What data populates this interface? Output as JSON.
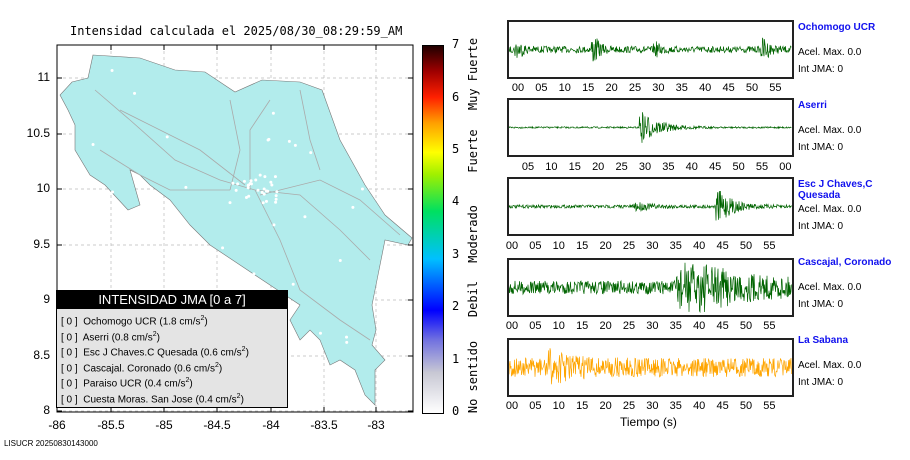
{
  "map": {
    "title": "Intensidad calculada el 2025/08/30_08:29:59_AM",
    "x_ticks": [
      "-86",
      "-85.5",
      "-85",
      "-84.5",
      "-84",
      "-83.5",
      "-83"
    ],
    "y_ticks": [
      "11",
      "10.5",
      "10",
      "9.5",
      "9",
      "8.5",
      "8"
    ],
    "footer": "LISUCR 20250830143000",
    "land_color": "#b2ecec"
  },
  "colorbar": {
    "ticks": [
      "0",
      "1",
      "2",
      "3",
      "4",
      "5",
      "6",
      "7"
    ],
    "labels": [
      "No sentido",
      "Debil",
      "Moderado",
      "Fuerte",
      "Muy Fuerte"
    ]
  },
  "legend": {
    "title": "INTENSIDAD JMA [0 a 7]",
    "rows": [
      {
        "int": "[ 0 ]",
        "name": "Ochomogo UCR (1.8 cm/s",
        "sup": "2",
        ")": ")"
      },
      {
        "int": "[ 0 ]",
        "name": "Aserri (0.8 cm/s",
        "sup": "2"
      },
      {
        "int": "[ 0 ]",
        "name": "Esc J Chaves.C Quesada (0.6 cm/s",
        "sup": "2"
      },
      {
        "int": "[ 0 ]",
        "name": "Cascajal. Coronado (0.6 cm/s",
        "sup": "2"
      },
      {
        "int": "[ 0 ]",
        "name": "Paraiso UCR (0.4 cm/s",
        "sup": "2"
      },
      {
        "int": "[ 0 ]",
        "name": "Cuesta Moras. San Jose (0.4 cm/s",
        "sup": "2"
      }
    ]
  },
  "chart_data": {
    "type": "line",
    "xlabel": "Tiempo (s)",
    "stations": [
      {
        "name": "Ochomogo UCR",
        "acel": "Acel. Max. 0.0",
        "int": "Int JMA: 0",
        "color": "#006400",
        "ticks": [
          "00",
          "05",
          "10",
          "15",
          "20",
          "25",
          "30",
          "35",
          "40",
          "45",
          "50",
          "55"
        ]
      },
      {
        "name": "Aserri",
        "acel": "Acel. Max. 0.0",
        "int": "Int JMA: 0",
        "color": "#006400",
        "ticks": [
          "05",
          "10",
          "15",
          "20",
          "25",
          "30",
          "35",
          "40",
          "45",
          "50",
          "55",
          "00"
        ]
      },
      {
        "name": "Esc J Chaves,C Quesada",
        "acel": "Acel. Max. 0.0",
        "int": "Int JMA: 0",
        "color": "#006400",
        "ticks": [
          "00",
          "05",
          "10",
          "15",
          "20",
          "25",
          "30",
          "35",
          "40",
          "45",
          "50",
          "55"
        ]
      },
      {
        "name": "Cascajal, Coronado",
        "acel": "Acel. Max. 0.0",
        "int": "Int JMA: 0",
        "color": "#006400",
        "ticks": [
          "00",
          "05",
          "10",
          "15",
          "20",
          "25",
          "30",
          "35",
          "40",
          "45",
          "50",
          "55"
        ]
      },
      {
        "name": "La Sabana",
        "acel": "Acel. Max. 0.0",
        "int": "Int JMA: 0",
        "color": "#ffa500",
        "ticks": [
          "00",
          "05",
          "10",
          "15",
          "20",
          "25",
          "30",
          "35",
          "40",
          "45",
          "50",
          "55"
        ]
      }
    ]
  }
}
